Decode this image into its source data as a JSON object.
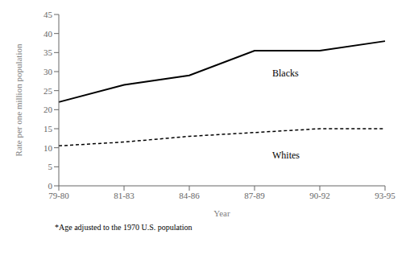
{
  "chart_data": {
    "type": "line",
    "categories": [
      "79-80",
      "81-83",
      "84-86",
      "87-89",
      "90-92",
      "93-95"
    ],
    "series": [
      {
        "name": "Blacks",
        "color": "#000000",
        "line_style": "solid",
        "values": [
          22,
          26.5,
          29,
          35.5,
          35.5,
          38
        ]
      },
      {
        "name": "Whites",
        "color": "#000000",
        "line_style": "dashed",
        "values": [
          10.5,
          11.5,
          13,
          14,
          15,
          15
        ]
      }
    ],
    "ylim": [
      0,
      45
    ],
    "yticks": [
      0,
      5,
      10,
      15,
      20,
      25,
      30,
      35,
      40,
      45
    ],
    "ylabel": "Rate per one million population",
    "xlabel": "Year",
    "annotations": [
      "*Age adjusted to the 1970 U.S. population"
    ],
    "grid": false
  }
}
